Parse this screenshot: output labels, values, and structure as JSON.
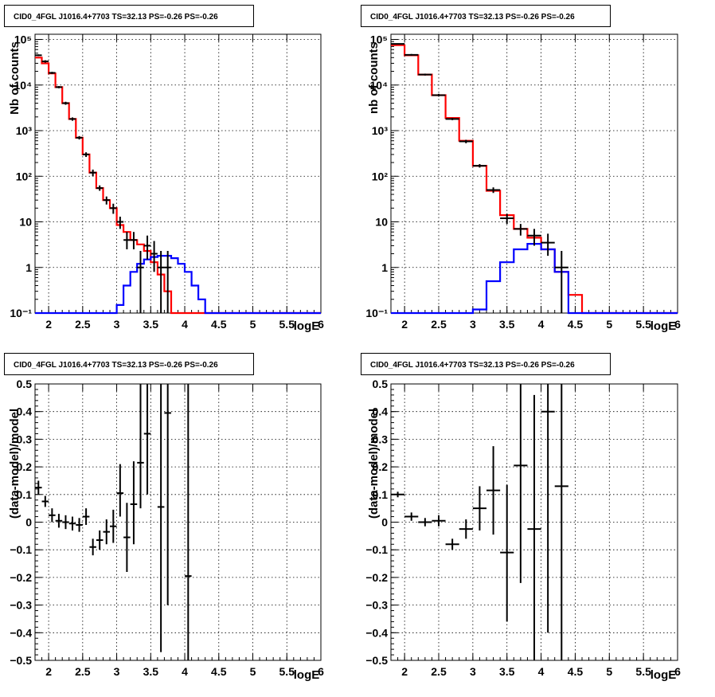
{
  "chart_data": [
    {
      "type": "step-histogram",
      "title": "CID0_4FGL J1016.4+7703 TS=32.13 PS=-0.26 PS=-0.26",
      "xlabel": "logE",
      "ylabel": "Nb of counts",
      "xlim": [
        1.8,
        6.0
      ],
      "ylim": [
        0.1,
        130000
      ],
      "yscale": "log",
      "grid": true,
      "xticks": [
        "2",
        "2.5",
        "3",
        "3.5",
        "4",
        "4.5",
        "5",
        "5.5",
        "6"
      ],
      "yticks": [
        "10⁻¹",
        "1",
        "10",
        "10²",
        "10³",
        "10⁴",
        "10⁵"
      ],
      "binwidth": 0.1,
      "bins": [
        1.8,
        1.9,
        2.0,
        2.1,
        2.2,
        2.3,
        2.4,
        2.5,
        2.6,
        2.7,
        2.8,
        2.9,
        3.0,
        3.1,
        3.2,
        3.3,
        3.4,
        3.5,
        3.6,
        3.7,
        3.8,
        3.9,
        4.0,
        4.1,
        4.2,
        4.3,
        4.4,
        4.5,
        4.6,
        4.7,
        4.8,
        4.9,
        5.0,
        5.1,
        5.2,
        5.3,
        5.4,
        5.5,
        5.6,
        5.7,
        5.8,
        5.9
      ],
      "series": [
        {
          "color": "#ff0000",
          "values": [
            40000,
            30000,
            18000,
            9000,
            4000,
            1800,
            700,
            300,
            120,
            55,
            30,
            20,
            8.5,
            6,
            4,
            3.2,
            2.3,
            1.3,
            0.7,
            0.3,
            0.1,
            0.1,
            0.1,
            0.1,
            0.1,
            0.1,
            0.1,
            0.1,
            0.1,
            0.1,
            0.1,
            0.1,
            0.1,
            0.1,
            0.1,
            0.1,
            0.1,
            0.1,
            0.1,
            0.1,
            0.1,
            0.1
          ]
        },
        {
          "color": "#0000ff",
          "values": [
            0.1,
            0.1,
            0.1,
            0.1,
            0.1,
            0.1,
            0.1,
            0.1,
            0.1,
            0.1,
            0.1,
            0.1,
            0.15,
            0.4,
            0.8,
            1.2,
            1.5,
            1.7,
            1.8,
            1.8,
            1.6,
            1.2,
            0.8,
            0.4,
            0.2,
            0.1,
            0.1,
            0.1,
            0.1,
            0.1,
            0.1,
            0.1,
            0.1,
            0.1,
            0.1,
            0.1,
            0.1,
            0.1,
            0.1,
            0.1,
            0.1,
            0.1
          ]
        }
      ],
      "points": [
        {
          "x": 1.85,
          "y": 45000,
          "ylo": 43000,
          "yhi": 47000
        },
        {
          "x": 1.95,
          "y": 33000,
          "ylo": 31000,
          "yhi": 35000
        },
        {
          "x": 2.05,
          "y": 18500,
          "ylo": 17500,
          "yhi": 19500
        },
        {
          "x": 2.15,
          "y": 9000,
          "ylo": 8500,
          "yhi": 9500
        },
        {
          "x": 2.25,
          "y": 4000,
          "ylo": 3700,
          "yhi": 4300
        },
        {
          "x": 2.35,
          "y": 1800,
          "ylo": 1650,
          "yhi": 1950
        },
        {
          "x": 2.45,
          "y": 700,
          "ylo": 640,
          "yhi": 760
        },
        {
          "x": 2.55,
          "y": 300,
          "ylo": 265,
          "yhi": 335
        },
        {
          "x": 2.65,
          "y": 120,
          "ylo": 100,
          "yhi": 140
        },
        {
          "x": 2.75,
          "y": 55,
          "ylo": 48,
          "yhi": 63
        },
        {
          "x": 2.85,
          "y": 30,
          "ylo": 24,
          "yhi": 36
        },
        {
          "x": 2.95,
          "y": 20,
          "ylo": 15,
          "yhi": 25
        },
        {
          "x": 3.05,
          "y": 10,
          "ylo": 7,
          "yhi": 13
        },
        {
          "x": 3.15,
          "y": 4,
          "ylo": 2.5,
          "yhi": 6
        },
        {
          "x": 3.25,
          "y": 4,
          "ylo": 2.5,
          "yhi": 6
        },
        {
          "x": 3.35,
          "y": 1,
          "ylo": 0.1,
          "yhi": 2.3
        },
        {
          "x": 3.45,
          "y": 3,
          "ylo": 1.5,
          "yhi": 5
        },
        {
          "x": 3.55,
          "y": 2,
          "ylo": 0.8,
          "yhi": 3.8
        },
        {
          "x": 3.65,
          "y": 1,
          "ylo": 0.1,
          "yhi": 2.3
        },
        {
          "x": 3.75,
          "y": 1,
          "ylo": 0.1,
          "yhi": 2.3
        }
      ]
    },
    {
      "type": "step-histogram",
      "title": "CID0_4FGL J1016.4+7703 TS=32.13 PS=-0.26 PS=-0.26",
      "xlabel": "logE",
      "ylabel": "nb of counts",
      "xlim": [
        1.8,
        6.0
      ],
      "ylim": [
        0.1,
        130000
      ],
      "yscale": "log",
      "grid": true,
      "xticks": [
        "2",
        "2.5",
        "3",
        "3.5",
        "4",
        "4.5",
        "5",
        "5.5",
        "6"
      ],
      "yticks": [
        "10⁻¹",
        "1",
        "10",
        "10²",
        "10³",
        "10⁴",
        "10⁵"
      ],
      "binwidth": 0.2,
      "bins": [
        1.8,
        2.0,
        2.2,
        2.4,
        2.6,
        2.8,
        3.0,
        3.2,
        3.4,
        3.6,
        3.8,
        4.0,
        4.2,
        4.4,
        4.6,
        4.8,
        5.0,
        5.2,
        5.4,
        5.6,
        5.8
      ],
      "series": [
        {
          "color": "#ff0000",
          "values": [
            75000,
            45000,
            17000,
            6000,
            1900,
            600,
            170,
            48,
            14,
            7,
            4.5,
            2.5,
            0.8,
            0.25,
            0.1,
            0.1,
            0.1,
            0.1,
            0.1,
            0.1,
            0.1
          ]
        },
        {
          "color": "#0000ff",
          "values": [
            0.1,
            0.1,
            0.1,
            0.1,
            0.1,
            0.1,
            0.12,
            0.5,
            1.3,
            2.5,
            3.3,
            2.5,
            0.8,
            0.1,
            0.1,
            0.1,
            0.1,
            0.1,
            0.1,
            0.1,
            0.1
          ]
        }
      ],
      "points": [
        {
          "x": 1.9,
          "y": 80000,
          "ylo": 78000,
          "yhi": 82000
        },
        {
          "x": 2.1,
          "y": 46000,
          "ylo": 44000,
          "yhi": 48000
        },
        {
          "x": 2.3,
          "y": 17000,
          "ylo": 16200,
          "yhi": 17800
        },
        {
          "x": 2.5,
          "y": 6000,
          "ylo": 5600,
          "yhi": 6400
        },
        {
          "x": 2.7,
          "y": 1800,
          "ylo": 1700,
          "yhi": 1900
        },
        {
          "x": 2.9,
          "y": 580,
          "ylo": 530,
          "yhi": 630
        },
        {
          "x": 3.1,
          "y": 170,
          "ylo": 155,
          "yhi": 185
        },
        {
          "x": 3.3,
          "y": 50,
          "ylo": 43,
          "yhi": 57
        },
        {
          "x": 3.5,
          "y": 12,
          "ylo": 9,
          "yhi": 15
        },
        {
          "x": 3.7,
          "y": 7,
          "ylo": 5,
          "yhi": 9
        },
        {
          "x": 3.9,
          "y": 5,
          "ylo": 3,
          "yhi": 7
        },
        {
          "x": 4.1,
          "y": 3.5,
          "ylo": 1.8,
          "yhi": 5.5
        },
        {
          "x": 4.3,
          "y": 1,
          "ylo": 0.1,
          "yhi": 2.3
        }
      ]
    },
    {
      "type": "scatter-errorbars",
      "title": "CID0_4FGL J1016.4+7703 TS=32.13 PS=-0.26 PS=-0.26",
      "xlabel": "logE",
      "ylabel": "(data-model)/model",
      "xlim": [
        1.8,
        6.0
      ],
      "ylim": [
        -0.5,
        0.5
      ],
      "grid": true,
      "xticks": [
        "2",
        "2.5",
        "3",
        "3.5",
        "4",
        "4.5",
        "5",
        "5.5",
        "6"
      ],
      "yticks": [
        "−0.5",
        "−0.4",
        "−0.3",
        "−0.2",
        "−0.1",
        "0",
        "0.1",
        "0.2",
        "0.3",
        "0.4",
        "0.5"
      ],
      "binwidth": 0.1,
      "points": [
        {
          "x": 1.85,
          "y": 0.125,
          "ylo": 0.1,
          "yhi": 0.15
        },
        {
          "x": 1.95,
          "y": 0.075,
          "ylo": 0.055,
          "yhi": 0.095
        },
        {
          "x": 2.05,
          "y": 0.025,
          "ylo": 0.0,
          "yhi": 0.05
        },
        {
          "x": 2.15,
          "y": 0.005,
          "ylo": -0.02,
          "yhi": 0.03
        },
        {
          "x": 2.25,
          "y": 0.0,
          "ylo": -0.025,
          "yhi": 0.025
        },
        {
          "x": 2.35,
          "y": -0.005,
          "ylo": -0.03,
          "yhi": 0.02
        },
        {
          "x": 2.45,
          "y": -0.01,
          "ylo": -0.035,
          "yhi": 0.015
        },
        {
          "x": 2.55,
          "y": 0.02,
          "ylo": -0.01,
          "yhi": 0.05
        },
        {
          "x": 2.65,
          "y": -0.09,
          "ylo": -0.12,
          "yhi": -0.06
        },
        {
          "x": 2.75,
          "y": -0.065,
          "ylo": -0.1,
          "yhi": -0.03
        },
        {
          "x": 2.85,
          "y": -0.035,
          "ylo": -0.08,
          "yhi": 0.01
        },
        {
          "x": 2.95,
          "y": -0.015,
          "ylo": -0.075,
          "yhi": 0.045
        },
        {
          "x": 3.05,
          "y": 0.105,
          "ylo": 0.02,
          "yhi": 0.21
        },
        {
          "x": 3.15,
          "y": -0.055,
          "ylo": -0.18,
          "yhi": 0.07
        },
        {
          "x": 3.25,
          "y": 0.065,
          "ylo": -0.08,
          "yhi": 0.22
        },
        {
          "x": 3.35,
          "y": 0.215,
          "ylo": 0.05,
          "yhi": 0.5
        },
        {
          "x": 3.45,
          "y": 0.32,
          "ylo": 0.1,
          "yhi": 0.5
        },
        {
          "x": 3.65,
          "y": 0.055,
          "ylo": -0.47,
          "yhi": 0.5
        },
        {
          "x": 3.75,
          "y": 0.395,
          "ylo": -0.3,
          "yhi": 0.5
        },
        {
          "x": 4.05,
          "y": -0.195,
          "ylo": -0.5,
          "yhi": 0.5
        }
      ]
    },
    {
      "type": "scatter-errorbars",
      "title": "CID0_4FGL J1016.4+7703 TS=32.13 PS=-0.26 PS=-0.26",
      "xlabel": "logE",
      "ylabel": "(data-model)/model",
      "xlim": [
        1.8,
        6.0
      ],
      "ylim": [
        -0.5,
        0.5
      ],
      "grid": true,
      "xticks": [
        "2",
        "2.5",
        "3",
        "3.5",
        "4",
        "4.5",
        "5",
        "5.5",
        "6"
      ],
      "yticks": [
        "−0.5",
        "−0.4",
        "−0.3",
        "−0.2",
        "−0.1",
        "0",
        "0.1",
        "0.2",
        "0.3",
        "0.4",
        "0.5"
      ],
      "binwidth": 0.2,
      "points": [
        {
          "x": 1.9,
          "y": 0.1,
          "ylo": 0.09,
          "yhi": 0.11
        },
        {
          "x": 2.1,
          "y": 0.02,
          "ylo": 0.005,
          "yhi": 0.035
        },
        {
          "x": 2.3,
          "y": 0.0,
          "ylo": -0.015,
          "yhi": 0.015
        },
        {
          "x": 2.5,
          "y": 0.005,
          "ylo": -0.015,
          "yhi": 0.025
        },
        {
          "x": 2.7,
          "y": -0.08,
          "ylo": -0.1,
          "yhi": -0.06
        },
        {
          "x": 2.9,
          "y": -0.025,
          "ylo": -0.06,
          "yhi": 0.01
        },
        {
          "x": 3.1,
          "y": 0.05,
          "ylo": -0.03,
          "yhi": 0.13
        },
        {
          "x": 3.3,
          "y": 0.115,
          "ylo": -0.045,
          "yhi": 0.275
        },
        {
          "x": 3.5,
          "y": -0.11,
          "ylo": -0.36,
          "yhi": 0.135
        },
        {
          "x": 3.7,
          "y": 0.205,
          "ylo": -0.22,
          "yhi": 0.5
        },
        {
          "x": 3.9,
          "y": -0.025,
          "ylo": -0.5,
          "yhi": 0.46
        },
        {
          "x": 4.1,
          "y": 0.4,
          "ylo": -0.4,
          "yhi": 0.5
        },
        {
          "x": 4.3,
          "y": 0.13,
          "ylo": -0.5,
          "yhi": 0.5
        }
      ]
    }
  ]
}
